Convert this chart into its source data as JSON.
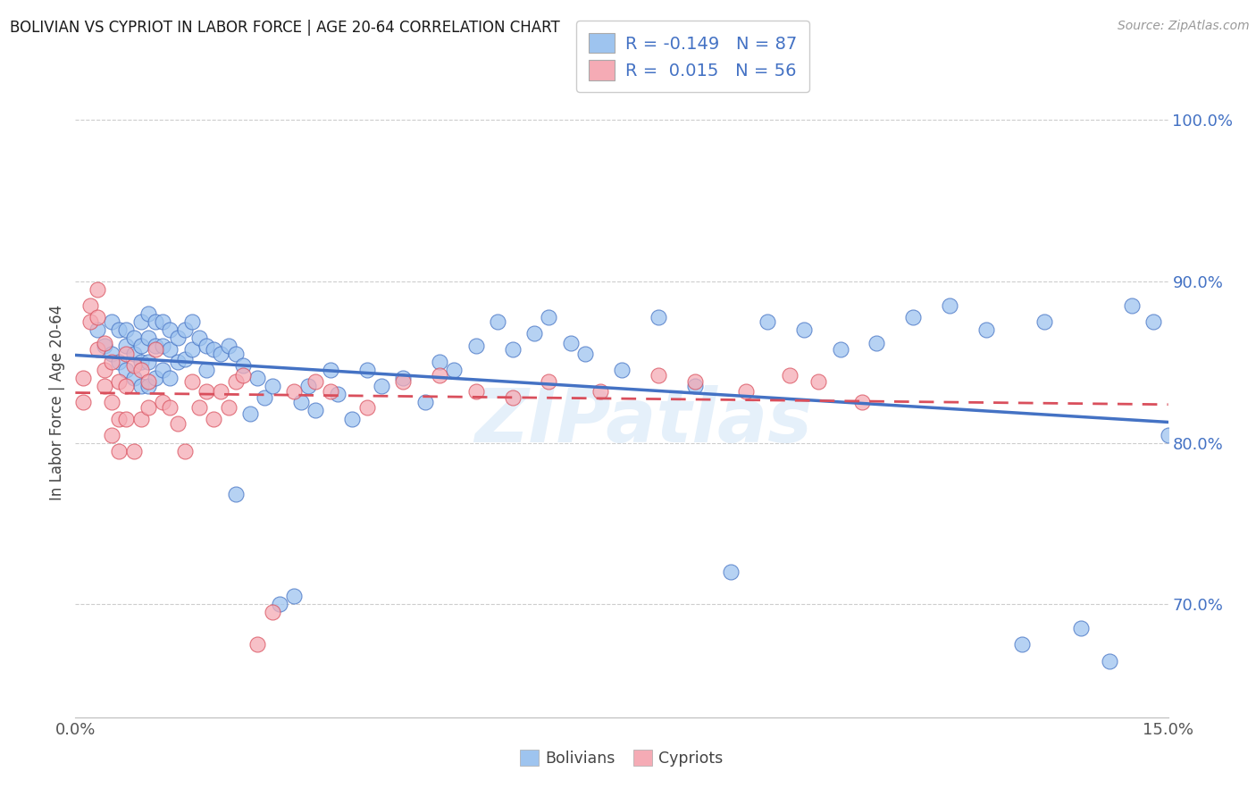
{
  "title": "BOLIVIAN VS CYPRIOT IN LABOR FORCE | AGE 20-64 CORRELATION CHART",
  "source": "Source: ZipAtlas.com",
  "ylabel": "In Labor Force | Age 20-64",
  "xlim": [
    0.0,
    0.15
  ],
  "ylim": [
    0.63,
    1.02
  ],
  "xticks": [
    0.0,
    0.03,
    0.06,
    0.09,
    0.12,
    0.15
  ],
  "xticklabels": [
    "0.0%",
    "",
    "",
    "",
    "",
    "15.0%"
  ],
  "yticks_right": [
    0.7,
    0.8,
    0.9,
    1.0
  ],
  "ytick_right_labels": [
    "70.0%",
    "80.0%",
    "90.0%",
    "100.0%"
  ],
  "background_color": "#ffffff",
  "grid_color": "#c8c8c8",
  "watermark": "ZIPatlas",
  "bolivians_color": "#9ec4ef",
  "cypriots_color": "#f5abb5",
  "trend_bolivians_color": "#4472c4",
  "trend_cypriots_color": "#d94f5c",
  "legend_R_bolivians": "-0.149",
  "legend_N_bolivians": "87",
  "legend_R_cypriots": "0.015",
  "legend_N_cypriots": "56",
  "bolivians_x": [
    0.003,
    0.004,
    0.005,
    0.005,
    0.006,
    0.006,
    0.007,
    0.007,
    0.007,
    0.008,
    0.008,
    0.008,
    0.009,
    0.009,
    0.009,
    0.009,
    0.01,
    0.01,
    0.01,
    0.01,
    0.011,
    0.011,
    0.011,
    0.012,
    0.012,
    0.012,
    0.013,
    0.013,
    0.013,
    0.014,
    0.014,
    0.015,
    0.015,
    0.016,
    0.016,
    0.017,
    0.018,
    0.018,
    0.019,
    0.02,
    0.021,
    0.022,
    0.022,
    0.023,
    0.024,
    0.025,
    0.026,
    0.027,
    0.028,
    0.03,
    0.031,
    0.032,
    0.033,
    0.035,
    0.036,
    0.038,
    0.04,
    0.042,
    0.045,
    0.048,
    0.05,
    0.052,
    0.055,
    0.058,
    0.06,
    0.063,
    0.065,
    0.068,
    0.07,
    0.075,
    0.08,
    0.085,
    0.09,
    0.095,
    0.1,
    0.105,
    0.11,
    0.115,
    0.12,
    0.125,
    0.13,
    0.133,
    0.138,
    0.142,
    0.145,
    0.148,
    0.15
  ],
  "bolivians_y": [
    0.87,
    0.86,
    0.855,
    0.875,
    0.85,
    0.87,
    0.86,
    0.845,
    0.87,
    0.865,
    0.855,
    0.84,
    0.875,
    0.86,
    0.85,
    0.835,
    0.88,
    0.865,
    0.85,
    0.835,
    0.875,
    0.86,
    0.84,
    0.875,
    0.86,
    0.845,
    0.87,
    0.858,
    0.84,
    0.865,
    0.85,
    0.87,
    0.852,
    0.875,
    0.858,
    0.865,
    0.86,
    0.845,
    0.858,
    0.855,
    0.86,
    0.855,
    0.768,
    0.848,
    0.818,
    0.84,
    0.828,
    0.835,
    0.7,
    0.705,
    0.825,
    0.835,
    0.82,
    0.845,
    0.83,
    0.815,
    0.845,
    0.835,
    0.84,
    0.825,
    0.85,
    0.845,
    0.86,
    0.875,
    0.858,
    0.868,
    0.878,
    0.862,
    0.855,
    0.845,
    0.878,
    0.835,
    0.72,
    0.875,
    0.87,
    0.858,
    0.862,
    0.878,
    0.885,
    0.87,
    0.675,
    0.875,
    0.685,
    0.665,
    0.885,
    0.875,
    0.805
  ],
  "cypriots_x": [
    0.001,
    0.001,
    0.002,
    0.002,
    0.003,
    0.003,
    0.003,
    0.004,
    0.004,
    0.004,
    0.005,
    0.005,
    0.005,
    0.006,
    0.006,
    0.006,
    0.007,
    0.007,
    0.007,
    0.008,
    0.008,
    0.009,
    0.009,
    0.01,
    0.01,
    0.011,
    0.012,
    0.013,
    0.014,
    0.015,
    0.016,
    0.017,
    0.018,
    0.019,
    0.02,
    0.021,
    0.022,
    0.023,
    0.025,
    0.027,
    0.03,
    0.033,
    0.035,
    0.04,
    0.045,
    0.05,
    0.055,
    0.06,
    0.065,
    0.072,
    0.08,
    0.085,
    0.092,
    0.098,
    0.102,
    0.108
  ],
  "cypriots_y": [
    0.825,
    0.84,
    0.885,
    0.875,
    0.895,
    0.878,
    0.858,
    0.845,
    0.862,
    0.835,
    0.85,
    0.825,
    0.805,
    0.838,
    0.815,
    0.795,
    0.855,
    0.835,
    0.815,
    0.848,
    0.795,
    0.845,
    0.815,
    0.838,
    0.822,
    0.858,
    0.825,
    0.822,
    0.812,
    0.795,
    0.838,
    0.822,
    0.832,
    0.815,
    0.832,
    0.822,
    0.838,
    0.842,
    0.675,
    0.695,
    0.832,
    0.838,
    0.832,
    0.822,
    0.838,
    0.842,
    0.832,
    0.828,
    0.838,
    0.832,
    0.842,
    0.838,
    0.832,
    0.842,
    0.838,
    0.825
  ]
}
